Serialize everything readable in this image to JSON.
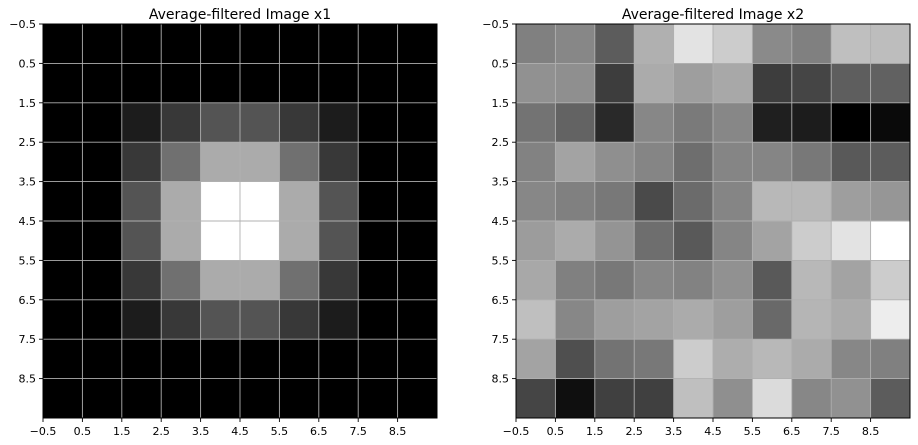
{
  "chart_data": [
    {
      "type": "heatmap",
      "title": "Average-filtered Image x1",
      "colormap": "gray",
      "xlim": [
        -0.5,
        9.5
      ],
      "ylim": [
        9.5,
        -0.5
      ],
      "xticks": [
        -0.5,
        0.5,
        1.5,
        2.5,
        3.5,
        4.5,
        5.5,
        6.5,
        7.5,
        8.5
      ],
      "yticks": [
        -0.5,
        0.5,
        1.5,
        2.5,
        3.5,
        4.5,
        5.5,
        6.5,
        7.5,
        8.5
      ],
      "xtick_labels": [
        "−0.5",
        "0.5",
        "1.5",
        "2.5",
        "3.5",
        "4.5",
        "5.5",
        "6.5",
        "7.5",
        "8.5"
      ],
      "ytick_labels": [
        "−0.5",
        "0.5",
        "1.5",
        "2.5",
        "3.5",
        "4.5",
        "5.5",
        "6.5",
        "7.5",
        "8.5"
      ],
      "grid": true,
      "values": [
        [
          0,
          0,
          0,
          0,
          0,
          0,
          0,
          0,
          0,
          0
        ],
        [
          0,
          0,
          0,
          0,
          0,
          0,
          0,
          0,
          0,
          0
        ],
        [
          0,
          0,
          0.11,
          0.22,
          0.33,
          0.33,
          0.22,
          0.11,
          0,
          0
        ],
        [
          0,
          0,
          0.22,
          0.44,
          0.67,
          0.67,
          0.44,
          0.22,
          0,
          0
        ],
        [
          0,
          0,
          0.33,
          0.67,
          1.0,
          1.0,
          0.67,
          0.33,
          0,
          0
        ],
        [
          0,
          0,
          0.33,
          0.67,
          1.0,
          1.0,
          0.67,
          0.33,
          0,
          0
        ],
        [
          0,
          0,
          0.22,
          0.44,
          0.67,
          0.67,
          0.44,
          0.22,
          0,
          0
        ],
        [
          0,
          0,
          0.11,
          0.22,
          0.33,
          0.33,
          0.22,
          0.11,
          0,
          0
        ],
        [
          0,
          0,
          0,
          0,
          0,
          0,
          0,
          0,
          0,
          0
        ],
        [
          0,
          0,
          0,
          0,
          0,
          0,
          0,
          0,
          0,
          0
        ]
      ]
    },
    {
      "type": "heatmap",
      "title": "Average-filtered Image x2",
      "colormap": "gray",
      "xlim": [
        -0.5,
        9.5
      ],
      "ylim": [
        9.5,
        -0.5
      ],
      "xticks": [
        -0.5,
        0.5,
        1.5,
        2.5,
        3.5,
        4.5,
        5.5,
        6.5,
        7.5,
        8.5
      ],
      "yticks": [
        -0.5,
        0.5,
        1.5,
        2.5,
        3.5,
        4.5,
        5.5,
        6.5,
        7.5,
        8.5
      ],
      "xtick_labels": [
        "−0.5",
        "0.5",
        "1.5",
        "2.5",
        "3.5",
        "4.5",
        "5.5",
        "6.5",
        "7.5",
        "8.5"
      ],
      "ytick_labels": [
        "−0.5",
        "0.5",
        "1.5",
        "2.5",
        "3.5",
        "4.5",
        "5.5",
        "6.5",
        "7.5",
        "8.5"
      ],
      "grid": true,
      "values": [
        [
          0.5,
          0.53,
          0.36,
          0.69,
          0.89,
          0.8,
          0.54,
          0.5,
          0.75,
          0.74
        ],
        [
          0.57,
          0.56,
          0.24,
          0.67,
          0.62,
          0.66,
          0.24,
          0.27,
          0.37,
          0.38
        ],
        [
          0.45,
          0.39,
          0.16,
          0.53,
          0.48,
          0.53,
          0.12,
          0.11,
          0.0,
          0.04
        ],
        [
          0.51,
          0.64,
          0.56,
          0.52,
          0.43,
          0.52,
          0.52,
          0.47,
          0.35,
          0.36
        ],
        [
          0.53,
          0.5,
          0.47,
          0.29,
          0.42,
          0.52,
          0.72,
          0.72,
          0.62,
          0.59
        ],
        [
          0.61,
          0.67,
          0.58,
          0.43,
          0.35,
          0.52,
          0.64,
          0.8,
          0.89,
          1.0
        ],
        [
          0.66,
          0.5,
          0.47,
          0.53,
          0.51,
          0.57,
          0.35,
          0.72,
          0.64,
          0.8
        ],
        [
          0.75,
          0.53,
          0.62,
          0.64,
          0.67,
          0.62,
          0.41,
          0.71,
          0.67,
          0.93
        ],
        [
          0.64,
          0.31,
          0.45,
          0.47,
          0.8,
          0.68,
          0.72,
          0.67,
          0.53,
          0.5
        ],
        [
          0.27,
          0.06,
          0.25,
          0.25,
          0.75,
          0.56,
          0.86,
          0.53,
          0.57,
          0.36
        ]
      ]
    }
  ]
}
